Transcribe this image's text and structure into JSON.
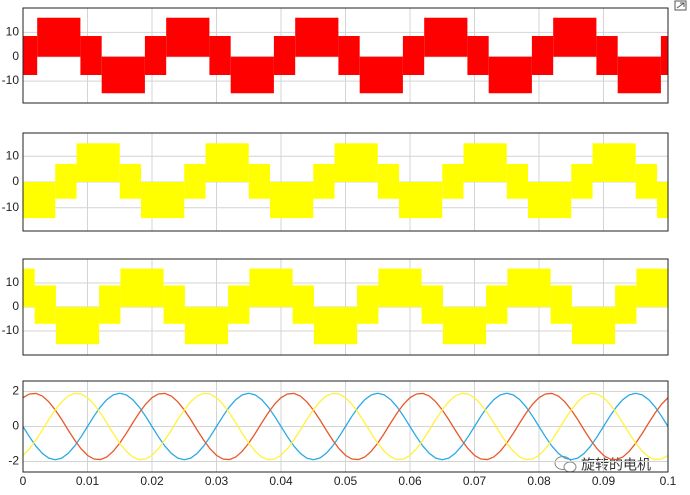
{
  "chart_data": [
    {
      "type": "band",
      "color": "#ff0000",
      "xlim": [
        0,
        0.1
      ],
      "ylim": [
        -19,
        20
      ],
      "yticks": [
        -10,
        0,
        10
      ],
      "xticks": [
        0,
        0.01,
        0.02,
        0.03,
        0.04,
        0.05,
        0.06,
        0.07,
        0.08,
        0.09,
        0.1
      ],
      "xtick_labels": false,
      "grid": true,
      "edges": [
        0,
        0.0022,
        0.0089,
        0.0122,
        0.0189,
        0.0222,
        0.0289,
        0.0322,
        0.0389,
        0.0422,
        0.0489,
        0.0522,
        0.0589,
        0.0622,
        0.0689,
        0.0722,
        0.0789,
        0.0822,
        0.0889,
        0.0922,
        0.0989,
        0.1
      ],
      "upper": [
        8.5,
        16,
        8.5,
        0,
        8.5,
        16,
        8.5,
        0,
        8.5,
        16,
        8.5,
        0,
        8.5,
        16,
        8.5,
        0,
        8.5,
        16,
        8.5,
        0,
        8.5
      ],
      "lower": [
        -7.5,
        0,
        -7.5,
        -15,
        -7.5,
        0,
        -7.5,
        -15,
        -7.5,
        0,
        -7.5,
        -15,
        -7.5,
        0,
        -7.5,
        -15,
        -7.5,
        0,
        -7.5,
        -15,
        -7.5
      ]
    },
    {
      "type": "band",
      "color": "#ffff00",
      "xlim": [
        0,
        0.1
      ],
      "ylim": [
        -19,
        19
      ],
      "yticks": [
        -10,
        0,
        10
      ],
      "xticks": [
        0,
        0.01,
        0.02,
        0.03,
        0.04,
        0.05,
        0.06,
        0.07,
        0.08,
        0.09,
        0.1
      ],
      "xtick_labels": false,
      "grid": true,
      "edges": [
        0,
        0.005,
        0.0083,
        0.015,
        0.0183,
        0.025,
        0.0283,
        0.035,
        0.0383,
        0.045,
        0.0483,
        0.055,
        0.0583,
        0.065,
        0.0683,
        0.075,
        0.0783,
        0.085,
        0.0883,
        0.095,
        0.0983,
        0.1
      ],
      "upper": [
        0,
        7,
        15,
        7,
        0,
        7,
        15,
        7,
        0,
        7,
        15,
        7,
        0,
        7,
        15,
        7,
        0,
        7,
        15,
        7,
        0
      ],
      "lower": [
        -14,
        -6.5,
        0,
        -6.5,
        -14,
        -6.5,
        0,
        -6.5,
        -14,
        -6.5,
        0,
        -6.5,
        -14,
        -6.5,
        0,
        -6.5,
        -14,
        -6.5,
        0,
        -6.5,
        -14
      ]
    },
    {
      "type": "band",
      "color": "#ffff00",
      "xlim": [
        0,
        0.1
      ],
      "ylim": [
        -20,
        20
      ],
      "yticks": [
        -10,
        0,
        10
      ],
      "xticks": [
        0,
        0.01,
        0.02,
        0.03,
        0.04,
        0.05,
        0.06,
        0.07,
        0.08,
        0.09,
        0.1
      ],
      "xtick_labels": false,
      "grid": true,
      "edges": [
        0,
        0.0018,
        0.0051,
        0.0118,
        0.0151,
        0.0218,
        0.0251,
        0.0318,
        0.0351,
        0.0418,
        0.0451,
        0.0518,
        0.0551,
        0.0618,
        0.0651,
        0.0718,
        0.0751,
        0.0818,
        0.0851,
        0.0918,
        0.0951,
        0.1
      ],
      "upper": [
        16,
        9,
        0,
        9,
        16,
        9,
        0,
        9,
        16,
        9,
        0,
        9,
        16,
        9,
        0,
        9,
        16,
        9,
        0,
        9,
        16
      ],
      "lower": [
        0,
        -7,
        -15.5,
        -7,
        0,
        -7,
        -15.5,
        -7,
        0,
        -7,
        -15.5,
        -7,
        0,
        -7,
        -15.5,
        -7,
        0,
        -7,
        -15.5,
        -7,
        0
      ]
    },
    {
      "type": "line",
      "xlim": [
        0,
        0.1
      ],
      "ylim": [
        -2.6,
        2.6
      ],
      "yticks": [
        -2,
        0,
        2
      ],
      "xticks": [
        0,
        0.01,
        0.02,
        0.03,
        0.04,
        0.05,
        0.06,
        0.07,
        0.08,
        0.09,
        0.1
      ],
      "xtick_labels": true,
      "grid": true,
      "x": [
        0,
        0.001,
        0.002,
        0.003,
        0.004,
        0.005,
        0.006,
        0.007,
        0.008,
        0.009,
        0.01,
        0.011,
        0.012,
        0.013,
        0.014,
        0.015,
        0.016,
        0.017,
        0.018,
        0.019,
        0.02,
        0.021,
        0.022,
        0.023,
        0.024,
        0.025,
        0.026,
        0.027,
        0.028,
        0.029,
        0.03,
        0.031,
        0.032,
        0.033,
        0.034,
        0.035,
        0.036,
        0.037,
        0.038,
        0.039,
        0.04,
        0.041,
        0.042,
        0.043,
        0.044,
        0.045,
        0.046,
        0.047,
        0.048,
        0.049,
        0.05,
        0.051,
        0.052,
        0.053,
        0.054,
        0.055,
        0.056,
        0.057,
        0.058,
        0.059,
        0.06,
        0.061,
        0.062,
        0.063,
        0.064,
        0.065,
        0.066,
        0.067,
        0.068,
        0.069,
        0.07,
        0.071,
        0.072,
        0.073,
        0.074,
        0.075,
        0.076,
        0.077,
        0.078,
        0.079,
        0.08,
        0.081,
        0.082,
        0.083,
        0.084,
        0.085,
        0.086,
        0.087,
        0.088,
        0.089,
        0.09,
        0.091,
        0.092,
        0.093,
        0.094,
        0.095,
        0.096,
        0.097,
        0.098,
        0.099,
        0.1
      ],
      "series": [
        {
          "color": "#2aa9e6",
          "values": [
            0,
            -0.59,
            -1.12,
            -1.54,
            -1.81,
            -1.9,
            -1.81,
            -1.54,
            -1.12,
            -0.59,
            0,
            0.59,
            1.12,
            1.54,
            1.81,
            1.9,
            1.81,
            1.54,
            1.12,
            0.59,
            0,
            -0.59,
            -1.12,
            -1.54,
            -1.81,
            -1.9,
            -1.81,
            -1.54,
            -1.12,
            -0.59,
            0,
            0.59,
            1.12,
            1.54,
            1.81,
            1.9,
            1.81,
            1.54,
            1.12,
            0.59,
            0,
            -0.59,
            -1.12,
            -1.54,
            -1.81,
            -1.9,
            -1.81,
            -1.54,
            -1.12,
            -0.59,
            0,
            0.59,
            1.12,
            1.54,
            1.81,
            1.9,
            1.81,
            1.54,
            1.12,
            0.59,
            0,
            -0.59,
            -1.12,
            -1.54,
            -1.81,
            -1.9,
            -1.81,
            -1.54,
            -1.12,
            -0.59,
            0,
            0.59,
            1.12,
            1.54,
            1.81,
            1.9,
            1.81,
            1.54,
            1.12,
            0.59,
            0,
            -0.59,
            -1.12,
            -1.54,
            -1.81,
            -1.9,
            -1.81,
            -1.54,
            -1.12,
            -0.59,
            0,
            0.59,
            1.12,
            1.54,
            1.81,
            1.9,
            1.81,
            1.54,
            1.12,
            0.59,
            0
          ]
        },
        {
          "color": "#e8582a",
          "values": [
            1.65,
            1.86,
            1.89,
            1.74,
            1.41,
            0.95,
            0.4,
            -0.2,
            -0.77,
            -1.27,
            -1.65,
            -1.86,
            -1.89,
            -1.74,
            -1.41,
            -0.95,
            -0.4,
            0.2,
            0.77,
            1.27,
            1.65,
            1.86,
            1.89,
            1.74,
            1.41,
            0.95,
            0.4,
            -0.2,
            -0.77,
            -1.27,
            -1.65,
            -1.86,
            -1.89,
            -1.74,
            -1.41,
            -0.95,
            -0.4,
            0.2,
            0.77,
            1.27,
            1.65,
            1.86,
            1.89,
            1.74,
            1.41,
            0.95,
            0.4,
            -0.2,
            -0.77,
            -1.27,
            -1.65,
            -1.86,
            -1.89,
            -1.74,
            -1.41,
            -0.95,
            -0.4,
            0.2,
            0.77,
            1.27,
            1.65,
            1.86,
            1.89,
            1.74,
            1.41,
            0.95,
            0.4,
            -0.2,
            -0.77,
            -1.27,
            -1.65,
            -1.86,
            -1.89,
            -1.74,
            -1.41,
            -0.95,
            -0.4,
            0.2,
            0.77,
            1.27,
            1.65,
            1.86,
            1.89,
            1.74,
            1.41,
            0.95,
            0.4,
            -0.2,
            -0.77,
            -1.27,
            -1.65,
            -1.86,
            -1.89,
            -1.74,
            -1.41,
            -0.95,
            -0.4,
            0.2,
            0.77,
            1.27,
            1.65
          ]
        },
        {
          "color": "#fff23a",
          "values": [
            -1.65,
            -1.27,
            -0.77,
            -0.2,
            0.4,
            0.95,
            1.41,
            1.74,
            1.89,
            1.86,
            1.65,
            1.27,
            0.77,
            0.2,
            -0.4,
            -0.95,
            -1.41,
            -1.74,
            -1.89,
            -1.86,
            -1.65,
            -1.27,
            -0.77,
            -0.2,
            0.4,
            0.95,
            1.41,
            1.74,
            1.89,
            1.86,
            1.65,
            1.27,
            0.77,
            0.2,
            -0.4,
            -0.95,
            -1.41,
            -1.74,
            -1.89,
            -1.86,
            -1.65,
            -1.27,
            -0.77,
            -0.2,
            0.4,
            0.95,
            1.41,
            1.74,
            1.89,
            1.86,
            1.65,
            1.27,
            0.77,
            0.2,
            -0.4,
            -0.95,
            -1.41,
            -1.74,
            -1.89,
            -1.86,
            -1.65,
            -1.27,
            -0.77,
            -0.2,
            0.4,
            0.95,
            1.41,
            1.74,
            1.89,
            1.86,
            1.65,
            1.27,
            0.77,
            0.2,
            -0.4,
            -0.95,
            -1.41,
            -1.74,
            -1.89,
            -1.86,
            -1.65,
            -1.27,
            -0.77,
            -0.2,
            0.4,
            0.95,
            1.41,
            1.74,
            1.89,
            1.86,
            1.65,
            1.27,
            0.77,
            0.2,
            -0.4,
            -0.95,
            -1.41,
            -1.74,
            -1.89,
            -1.86,
            -1.65
          ]
        }
      ]
    }
  ],
  "watermark": "旋转的电机"
}
